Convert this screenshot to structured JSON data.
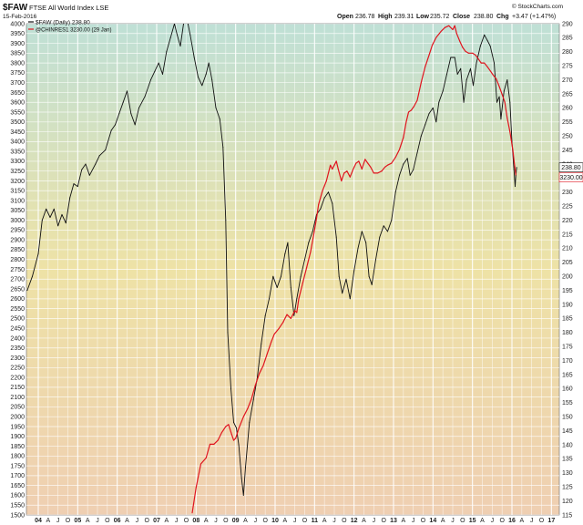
{
  "header": {
    "symbol": "$FAW",
    "name": "FTSE All World Index  LSE",
    "date": "15-Feb-2016",
    "open_label": "Open",
    "open": "236.78",
    "high_label": "High",
    "high": "239.31",
    "low_label": "Low",
    "low": "235.72",
    "close_label": "Close",
    "close": "238.80",
    "chg_label": "Chg",
    "chg": "+3.47 (+1.47%)",
    "watermark": "© StockCharts.com"
  },
  "legend": {
    "faw": "$FAW (Daily) 238.80",
    "chn": "@CHINRES1 3230.00 (29 Jan)"
  },
  "badges": {
    "faw_last": "238.80",
    "chn_last": "3230.00"
  },
  "colors": {
    "faw": "#111111",
    "chn": "#e0141e",
    "grad_top": "#bfe0d6",
    "grad_mid": "#eee2a6",
    "grad_bottom": "#efcfb2"
  },
  "chart_data": {
    "type": "line",
    "title": "$FAW FTSE All World Index  LSE",
    "x_tick_labels": [
      {
        "t": 2004.0,
        "label": "04"
      },
      {
        "t": 2004.25,
        "label": "A"
      },
      {
        "t": 2004.5,
        "label": "J"
      },
      {
        "t": 2004.75,
        "label": "O"
      },
      {
        "t": 2005.0,
        "label": "05"
      },
      {
        "t": 2005.25,
        "label": "A"
      },
      {
        "t": 2005.5,
        "label": "J"
      },
      {
        "t": 2005.75,
        "label": "O"
      },
      {
        "t": 2006.0,
        "label": "06"
      },
      {
        "t": 2006.25,
        "label": "A"
      },
      {
        "t": 2006.5,
        "label": "J"
      },
      {
        "t": 2006.75,
        "label": "O"
      },
      {
        "t": 2007.0,
        "label": "07"
      },
      {
        "t": 2007.25,
        "label": "A"
      },
      {
        "t": 2007.5,
        "label": "J"
      },
      {
        "t": 2007.75,
        "label": "O"
      },
      {
        "t": 2008.0,
        "label": "08"
      },
      {
        "t": 2008.25,
        "label": "A"
      },
      {
        "t": 2008.5,
        "label": "J"
      },
      {
        "t": 2008.75,
        "label": "O"
      },
      {
        "t": 2009.0,
        "label": "09"
      },
      {
        "t": 2009.25,
        "label": "A"
      },
      {
        "t": 2009.5,
        "label": "J"
      },
      {
        "t": 2009.75,
        "label": "O"
      },
      {
        "t": 2010.0,
        "label": "10"
      },
      {
        "t": 2010.25,
        "label": "A"
      },
      {
        "t": 2010.5,
        "label": "J"
      },
      {
        "t": 2010.75,
        "label": "O"
      },
      {
        "t": 2011.0,
        "label": "11"
      },
      {
        "t": 2011.25,
        "label": "A"
      },
      {
        "t": 2011.5,
        "label": "J"
      },
      {
        "t": 2011.75,
        "label": "O"
      },
      {
        "t": 2012.0,
        "label": "12"
      },
      {
        "t": 2012.25,
        "label": "A"
      },
      {
        "t": 2012.5,
        "label": "J"
      },
      {
        "t": 2012.75,
        "label": "O"
      },
      {
        "t": 2013.0,
        "label": "13"
      },
      {
        "t": 2013.25,
        "label": "A"
      },
      {
        "t": 2013.5,
        "label": "J"
      },
      {
        "t": 2013.75,
        "label": "O"
      },
      {
        "t": 2014.0,
        "label": "14"
      },
      {
        "t": 2014.25,
        "label": "A"
      },
      {
        "t": 2014.5,
        "label": "J"
      },
      {
        "t": 2014.75,
        "label": "O"
      },
      {
        "t": 2015.0,
        "label": "15"
      },
      {
        "t": 2015.25,
        "label": "A"
      },
      {
        "t": 2015.5,
        "label": "J"
      },
      {
        "t": 2015.75,
        "label": "O"
      },
      {
        "t": 2016.0,
        "label": "16"
      },
      {
        "t": 2016.25,
        "label": "A"
      },
      {
        "t": 2016.5,
        "label": "J"
      },
      {
        "t": 2016.75,
        "label": "O"
      },
      {
        "t": 2017.0,
        "label": "17"
      }
    ],
    "xlim": [
      2003.7,
      2017.2
    ],
    "left_axis": {
      "min": 1500,
      "max": 4000,
      "step": 50
    },
    "right_axis": {
      "min": 115,
      "max": 290,
      "step": 5
    },
    "grid": true,
    "series": [
      {
        "name": "$FAW (Daily) 238.80",
        "axis": "right",
        "color": "#111111",
        "points": [
          [
            2003.72,
            195
          ],
          [
            2003.85,
            200
          ],
          [
            2004.0,
            208
          ],
          [
            2004.1,
            220
          ],
          [
            2004.2,
            224
          ],
          [
            2004.3,
            221
          ],
          [
            2004.4,
            224
          ],
          [
            2004.5,
            218
          ],
          [
            2004.6,
            222
          ],
          [
            2004.7,
            219
          ],
          [
            2004.8,
            228
          ],
          [
            2004.9,
            233
          ],
          [
            2005.0,
            232
          ],
          [
            2005.1,
            238
          ],
          [
            2005.2,
            240
          ],
          [
            2005.3,
            236
          ],
          [
            2005.45,
            240
          ],
          [
            2005.55,
            243
          ],
          [
            2005.7,
            245
          ],
          [
            2005.85,
            252
          ],
          [
            2005.95,
            254
          ],
          [
            2006.05,
            258
          ],
          [
            2006.15,
            262
          ],
          [
            2006.25,
            266
          ],
          [
            2006.35,
            258
          ],
          [
            2006.45,
            254
          ],
          [
            2006.55,
            260
          ],
          [
            2006.7,
            264
          ],
          [
            2006.85,
            270
          ],
          [
            2006.95,
            273
          ],
          [
            2007.05,
            276
          ],
          [
            2007.15,
            272
          ],
          [
            2007.25,
            280
          ],
          [
            2007.35,
            285
          ],
          [
            2007.45,
            290
          ],
          [
            2007.52,
            286
          ],
          [
            2007.6,
            282
          ],
          [
            2007.68,
            290
          ],
          [
            2007.75,
            293
          ],
          [
            2007.85,
            286
          ],
          [
            2007.95,
            278
          ],
          [
            2008.05,
            271
          ],
          [
            2008.15,
            268
          ],
          [
            2008.25,
            272
          ],
          [
            2008.32,
            276
          ],
          [
            2008.4,
            270
          ],
          [
            2008.5,
            260
          ],
          [
            2008.6,
            256
          ],
          [
            2008.68,
            246
          ],
          [
            2008.75,
            220
          ],
          [
            2008.8,
            180
          ],
          [
            2008.88,
            160
          ],
          [
            2008.95,
            148
          ],
          [
            2009.02,
            146
          ],
          [
            2009.08,
            140
          ],
          [
            2009.15,
            128
          ],
          [
            2009.2,
            122
          ],
          [
            2009.25,
            132
          ],
          [
            2009.35,
            148
          ],
          [
            2009.45,
            156
          ],
          [
            2009.55,
            164
          ],
          [
            2009.65,
            176
          ],
          [
            2009.75,
            186
          ],
          [
            2009.85,
            192
          ],
          [
            2009.95,
            200
          ],
          [
            2010.05,
            196
          ],
          [
            2010.15,
            200
          ],
          [
            2010.25,
            208
          ],
          [
            2010.32,
            212
          ],
          [
            2010.4,
            196
          ],
          [
            2010.48,
            186
          ],
          [
            2010.55,
            192
          ],
          [
            2010.65,
            200
          ],
          [
            2010.75,
            206
          ],
          [
            2010.85,
            212
          ],
          [
            2010.95,
            216
          ],
          [
            2011.05,
            222
          ],
          [
            2011.15,
            224
          ],
          [
            2011.25,
            228
          ],
          [
            2011.35,
            230
          ],
          [
            2011.45,
            226
          ],
          [
            2011.55,
            214
          ],
          [
            2011.62,
            200
          ],
          [
            2011.7,
            194
          ],
          [
            2011.8,
            199
          ],
          [
            2011.9,
            192
          ],
          [
            2012.0,
            202
          ],
          [
            2012.1,
            210
          ],
          [
            2012.2,
            216
          ],
          [
            2012.3,
            212
          ],
          [
            2012.38,
            200
          ],
          [
            2012.45,
            197
          ],
          [
            2012.55,
            206
          ],
          [
            2012.65,
            214
          ],
          [
            2012.75,
            218
          ],
          [
            2012.85,
            216
          ],
          [
            2012.95,
            220
          ],
          [
            2013.05,
            230
          ],
          [
            2013.15,
            236
          ],
          [
            2013.25,
            240
          ],
          [
            2013.35,
            242
          ],
          [
            2013.42,
            236
          ],
          [
            2013.5,
            238
          ],
          [
            2013.6,
            244
          ],
          [
            2013.7,
            250
          ],
          [
            2013.8,
            254
          ],
          [
            2013.9,
            258
          ],
          [
            2014.0,
            260
          ],
          [
            2014.08,
            255
          ],
          [
            2014.15,
            262
          ],
          [
            2014.25,
            266
          ],
          [
            2014.35,
            272
          ],
          [
            2014.45,
            278
          ],
          [
            2014.55,
            278
          ],
          [
            2014.62,
            272
          ],
          [
            2014.7,
            274
          ],
          [
            2014.78,
            262
          ],
          [
            2014.85,
            270
          ],
          [
            2014.95,
            274
          ],
          [
            2015.02,
            268
          ],
          [
            2015.1,
            276
          ],
          [
            2015.2,
            282
          ],
          [
            2015.3,
            286
          ],
          [
            2015.38,
            284
          ],
          [
            2015.45,
            282
          ],
          [
            2015.55,
            276
          ],
          [
            2015.62,
            262
          ],
          [
            2015.68,
            264
          ],
          [
            2015.72,
            256
          ],
          [
            2015.8,
            266
          ],
          [
            2015.88,
            270
          ],
          [
            2015.95,
            262
          ],
          [
            2016.0,
            248
          ],
          [
            2016.05,
            238
          ],
          [
            2016.08,
            232
          ],
          [
            2016.1,
            236
          ],
          [
            2016.12,
            238.8
          ]
        ]
      },
      {
        "name": "@CHINRES1 3230.00 (29 Jan)",
        "axis": "left",
        "color": "#e0141e",
        "points": [
          [
            2007.9,
            1510
          ],
          [
            2008.0,
            1640
          ],
          [
            2008.12,
            1760
          ],
          [
            2008.25,
            1790
          ],
          [
            2008.35,
            1860
          ],
          [
            2008.45,
            1860
          ],
          [
            2008.55,
            1880
          ],
          [
            2008.65,
            1920
          ],
          [
            2008.75,
            1950
          ],
          [
            2008.82,
            1960
          ],
          [
            2008.9,
            1910
          ],
          [
            2008.95,
            1880
          ],
          [
            2009.0,
            1890
          ],
          [
            2009.08,
            1940
          ],
          [
            2009.2,
            2000
          ],
          [
            2009.3,
            2040
          ],
          [
            2009.4,
            2090
          ],
          [
            2009.5,
            2160
          ],
          [
            2009.6,
            2220
          ],
          [
            2009.7,
            2260
          ],
          [
            2009.8,
            2320
          ],
          [
            2009.9,
            2380
          ],
          [
            2009.98,
            2420
          ],
          [
            2010.1,
            2450
          ],
          [
            2010.2,
            2480
          ],
          [
            2010.3,
            2520
          ],
          [
            2010.4,
            2500
          ],
          [
            2010.5,
            2540
          ],
          [
            2010.55,
            2530
          ],
          [
            2010.6,
            2600
          ],
          [
            2010.7,
            2680
          ],
          [
            2010.8,
            2760
          ],
          [
            2010.9,
            2840
          ],
          [
            2010.98,
            2930
          ],
          [
            2011.05,
            3010
          ],
          [
            2011.1,
            3080
          ],
          [
            2011.2,
            3150
          ],
          [
            2011.3,
            3200
          ],
          [
            2011.35,
            3240
          ],
          [
            2011.4,
            3280
          ],
          [
            2011.45,
            3260
          ],
          [
            2011.5,
            3280
          ],
          [
            2011.55,
            3300
          ],
          [
            2011.6,
            3260
          ],
          [
            2011.68,
            3200
          ],
          [
            2011.75,
            3240
          ],
          [
            2011.82,
            3250
          ],
          [
            2011.9,
            3220
          ],
          [
            2011.98,
            3260
          ],
          [
            2012.05,
            3290
          ],
          [
            2012.12,
            3300
          ],
          [
            2012.2,
            3260
          ],
          [
            2012.28,
            3310
          ],
          [
            2012.35,
            3290
          ],
          [
            2012.42,
            3270
          ],
          [
            2012.5,
            3240
          ],
          [
            2012.6,
            3240
          ],
          [
            2012.7,
            3250
          ],
          [
            2012.78,
            3270
          ],
          [
            2012.85,
            3280
          ],
          [
            2012.95,
            3290
          ],
          [
            2013.05,
            3320
          ],
          [
            2013.15,
            3360
          ],
          [
            2013.25,
            3420
          ],
          [
            2013.32,
            3500
          ],
          [
            2013.38,
            3550
          ],
          [
            2013.45,
            3560
          ],
          [
            2013.52,
            3580
          ],
          [
            2013.6,
            3610
          ],
          [
            2013.7,
            3700
          ],
          [
            2013.8,
            3780
          ],
          [
            2013.9,
            3840
          ],
          [
            2013.98,
            3890
          ],
          [
            2014.08,
            3930
          ],
          [
            2014.2,
            3960
          ],
          [
            2014.3,
            3980
          ],
          [
            2014.4,
            3990
          ],
          [
            2014.5,
            3970
          ],
          [
            2014.55,
            3990
          ],
          [
            2014.6,
            3950
          ],
          [
            2014.68,
            3910
          ],
          [
            2014.75,
            3880
          ],
          [
            2014.82,
            3860
          ],
          [
            2014.9,
            3850
          ],
          [
            2015.0,
            3850
          ],
          [
            2015.08,
            3840
          ],
          [
            2015.15,
            3820
          ],
          [
            2015.22,
            3800
          ],
          [
            2015.3,
            3800
          ],
          [
            2015.38,
            3780
          ],
          [
            2015.45,
            3760
          ],
          [
            2015.52,
            3740
          ],
          [
            2015.6,
            3720
          ],
          [
            2015.68,
            3680
          ],
          [
            2015.75,
            3640
          ],
          [
            2015.82,
            3600
          ],
          [
            2015.88,
            3520
          ],
          [
            2015.95,
            3450
          ],
          [
            2016.02,
            3360
          ],
          [
            2016.06,
            3290
          ],
          [
            2016.1,
            3230
          ]
        ]
      }
    ]
  }
}
